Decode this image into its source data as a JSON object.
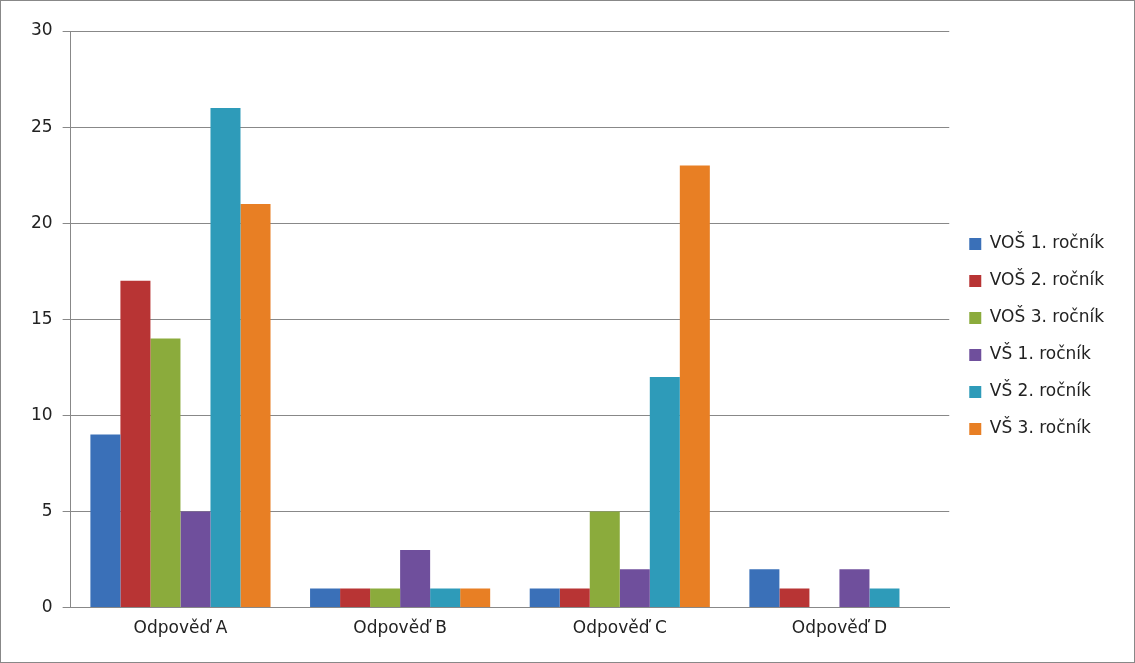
{
  "chart_data": {
    "type": "bar",
    "categories": [
      "Odpověď A",
      "Odpověď B",
      "Odpověď C",
      "Odpověď D"
    ],
    "series": [
      {
        "name": "VOŠ 1. ročník",
        "color": "#3a70b8",
        "values": [
          9,
          1,
          1,
          2
        ]
      },
      {
        "name": "VOŠ 2. ročník",
        "color": "#b83434",
        "values": [
          17,
          1,
          1,
          1
        ]
      },
      {
        "name": "VOŠ 3. ročník",
        "color": "#8bab3c",
        "values": [
          14,
          1,
          5,
          0
        ]
      },
      {
        "name": "VŠ 1. ročník",
        "color": "#6f4f9c",
        "values": [
          5,
          3,
          2,
          2
        ]
      },
      {
        "name": "VŠ 2. ročník",
        "color": "#2e9bb9",
        "values": [
          26,
          1,
          12,
          1
        ]
      },
      {
        "name": "VŠ 3. ročník",
        "color": "#e87f24",
        "values": [
          21,
          1,
          23,
          0
        ]
      }
    ],
    "ylim": [
      0,
      30
    ],
    "yticks": [
      0,
      5,
      10,
      15,
      20,
      25,
      30
    ],
    "grid": "y",
    "legend": "right"
  }
}
